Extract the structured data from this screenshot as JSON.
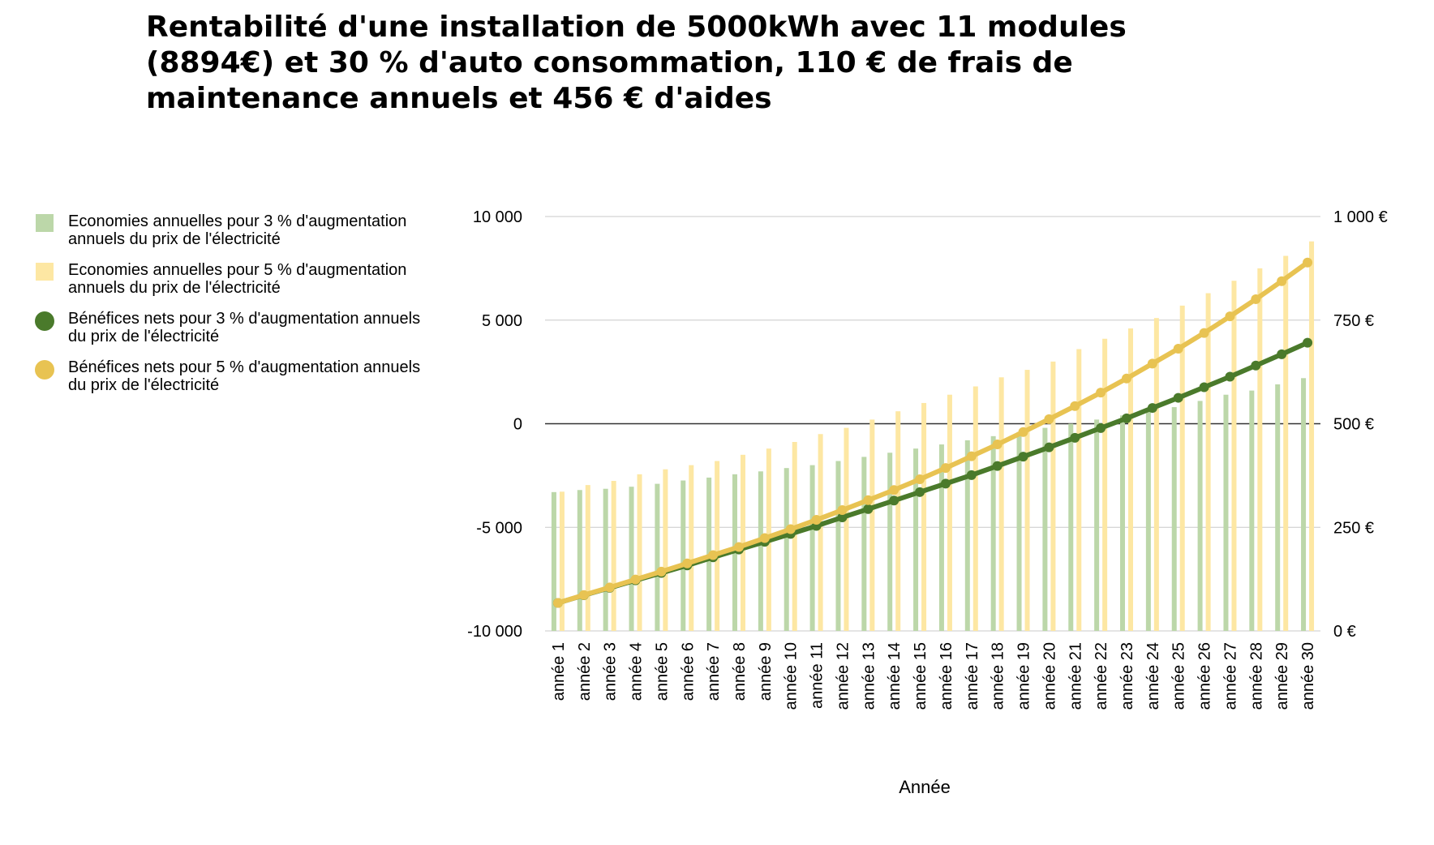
{
  "title": "Rentabilité d'une installation de 5000kWh avec 11 modules (8894€) et 30 % d'auto consommation, 110 € de frais de maintenance annuels et 456 € d'aides",
  "legend": [
    {
      "label": "Economies annuelles pour 3 % d'augmentation annuels du prix de l'électricité",
      "color": "#bcd7a9",
      "shape": "square"
    },
    {
      "label": "Economies annuelles pour 5 % d'augmentation annuels du prix de l'électricité",
      "color": "#fde7a3",
      "shape": "square"
    },
    {
      "label": "Bénéfices nets pour 3 % d'augmentation annuels du prix de l'électricité",
      "color": "#4a7a2b",
      "shape": "circle"
    },
    {
      "label": "Bénéfices nets pour 5 % d'augmentation annuels du prix de l'électricité",
      "color": "#e8c352",
      "shape": "circle"
    }
  ],
  "chart_data": {
    "type": "bar+line",
    "title": "Rentabilité d'une installation de 5000kWh avec 11 modules (8894€) et 30 % d'auto consommation, 110 € de frais de maintenance annuels et 456 € d'aides",
    "xlabel": "Année",
    "categories": [
      "année 1",
      "année 2",
      "année 3",
      "année 4",
      "année 5",
      "année 6",
      "année 7",
      "année 8",
      "année 9",
      "année 10",
      "année 11",
      "année 12",
      "année 13",
      "année 14",
      "année 15",
      "année 16",
      "année 17",
      "année 18",
      "année 19",
      "année 20",
      "année 21",
      "année 22",
      "année 23",
      "année 24",
      "année 25",
      "année 26",
      "année 27",
      "année 28",
      "année 29",
      "année 30"
    ],
    "y_left": {
      "ylim": [
        -10000,
        10000
      ],
      "ticks": [
        10000,
        5000,
        0,
        -5000,
        -10000
      ],
      "tick_labels": [
        "10 000",
        "5 000",
        "0",
        "-5 000",
        "-10 000"
      ]
    },
    "y_right": {
      "ylim": [
        0,
        1000
      ],
      "ticks": [
        1000,
        750,
        500,
        250,
        0
      ],
      "tick_labels": [
        "1 000 €",
        "750 €",
        "500 €",
        "250 €",
        "0 €"
      ]
    },
    "grid": true,
    "legend_position": "left",
    "series": [
      {
        "name": "Economies annuelles pour 3 % d'augmentation annuels du prix de l'électricité",
        "type": "bar",
        "axis": "right",
        "color": "#bcd7a9",
        "values": [
          335,
          340,
          343,
          348,
          355,
          363,
          370,
          378,
          385,
          393,
          400,
          410,
          420,
          430,
          440,
          450,
          460,
          470,
          480,
          490,
          500,
          510,
          520,
          530,
          540,
          555,
          570,
          580,
          595,
          610
        ]
      },
      {
        "name": "Economies annuelles pour 5 % d'augmentation annuels du prix de l'électricité",
        "type": "bar",
        "axis": "right",
        "color": "#fde7a3",
        "values": [
          336,
          352,
          362,
          378,
          390,
          400,
          410,
          425,
          440,
          456,
          475,
          490,
          510,
          530,
          550,
          570,
          590,
          612,
          630,
          650,
          680,
          705,
          730,
          755,
          785,
          815,
          845,
          875,
          905,
          940
        ]
      },
      {
        "name": "Bénéfices nets pour 3 % d'augmentation annuels du prix de l'électricité",
        "type": "line",
        "axis": "left",
        "color": "#4a7a2b",
        "values": [
          -8650,
          -8280,
          -7920,
          -7560,
          -7200,
          -6840,
          -6450,
          -6070,
          -5700,
          -5320,
          -4930,
          -4520,
          -4120,
          -3710,
          -3300,
          -2890,
          -2480,
          -2040,
          -1590,
          -1140,
          -680,
          -210,
          260,
          760,
          1250,
          1760,
          2270,
          2810,
          3350,
          3910
        ]
      },
      {
        "name": "Bénéfices nets pour 5 % d'augmentation annuels du prix de l'électricité",
        "type": "line",
        "axis": "left",
        "color": "#e8c352",
        "values": [
          -8650,
          -8270,
          -7900,
          -7520,
          -7140,
          -6740,
          -6340,
          -5950,
          -5520,
          -5090,
          -4640,
          -4170,
          -3690,
          -3200,
          -2680,
          -2140,
          -1570,
          -1000,
          -400,
          220,
          850,
          1500,
          2180,
          2900,
          3620,
          4380,
          5180,
          6010,
          6880,
          7780
        ]
      }
    ]
  }
}
